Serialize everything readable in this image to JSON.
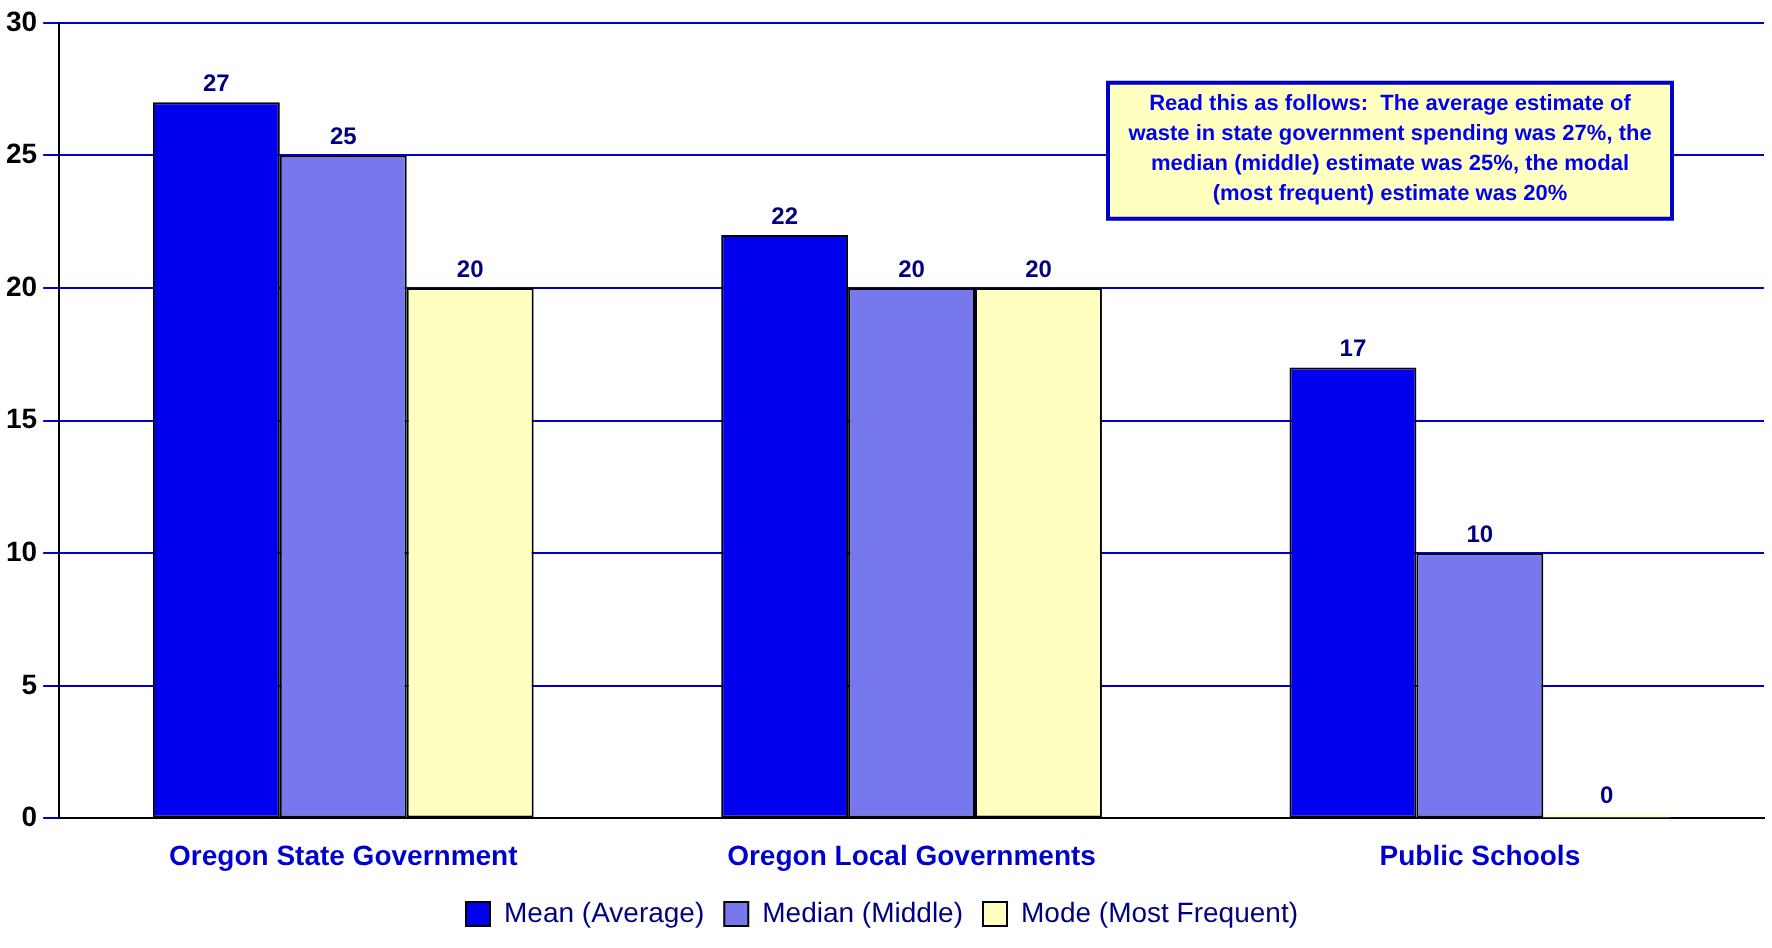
{
  "chart_data": {
    "type": "bar",
    "categories": [
      "Oregon State Government",
      "Oregon Local Governments",
      "Public Schools"
    ],
    "series": [
      {
        "name": "Mean (Average)",
        "color": "#0000ee",
        "values": [
          27,
          22,
          17
        ]
      },
      {
        "name": "Median (Middle)",
        "color": "#7777ee",
        "values": [
          25,
          20,
          10
        ]
      },
      {
        "name": "Mode (Most Frequent)",
        "color": "#ffffc0",
        "values": [
          20,
          20,
          0
        ]
      }
    ],
    "ylim": [
      0,
      30
    ],
    "yticks": [
      0,
      5,
      10,
      15,
      20,
      25,
      30
    ],
    "grid": "y",
    "legend": "bottom",
    "data_labels": true,
    "annotations": [
      "Read this as follows:  The average estimate of waste in state government spending was 27%, the median (middle) estimate was 25%, the modal (most frequent) estimate was 20%"
    ]
  }
}
